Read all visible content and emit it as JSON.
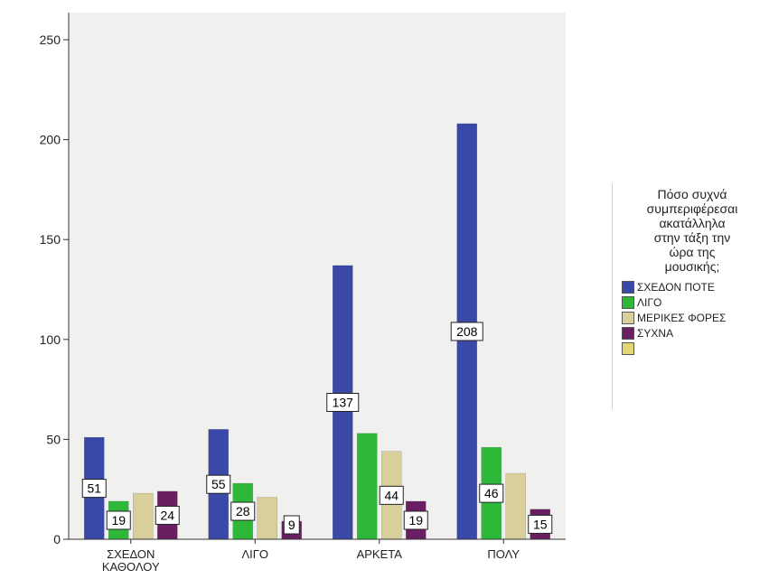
{
  "chart_data": {
    "type": "bar",
    "categories": [
      "ΣΧΕΔΟΝ\nΚΑΘΟΛΟΥ",
      "ΛΙΓΟ",
      "ΑΡΚΕΤΑ",
      "ΠΟΛΥ"
    ],
    "series": [
      {
        "name": "ΣΧΕΔΟΝ ΠΟΤΕ",
        "color": "#3a48a8",
        "values": [
          51,
          55,
          137,
          208
        ],
        "labels": [
          "51",
          "55",
          "137",
          "208"
        ]
      },
      {
        "name": "ΛΙΓΟ",
        "color": "#2db83a",
        "values": [
          19,
          28,
          53,
          46
        ],
        "labels": [
          "19",
          "28",
          "",
          "46"
        ]
      },
      {
        "name": "ΜΕΡΙΚΕΣ ΦΟΡΕΣ",
        "color": "#d8cf9a",
        "values": [
          23,
          21,
          44,
          33
        ],
        "labels": [
          "",
          "",
          "44",
          ""
        ]
      },
      {
        "name": "ΣΥΧΝΑ",
        "color": "#6a1f63",
        "values": [
          24,
          9,
          19,
          15
        ],
        "labels": [
          "24",
          "9",
          "19",
          "15"
        ]
      }
    ],
    "legend_hidden_entry_color": "#e3d675",
    "title": "",
    "xlabel": "",
    "ylabel": "",
    "ylim": [
      0,
      250
    ],
    "yticks": [
      0,
      50,
      100,
      150,
      200,
      250
    ],
    "grid": false,
    "legend": {
      "title": "Πόσο συχνά\nσυμπεριφέρεσαι\nακατάλληλα\nστην τάξη την\nώρα της\nμουσικής;",
      "position": "right"
    },
    "colors": {
      "plot_background": "#f0f0ee",
      "axis": "#333333"
    }
  }
}
